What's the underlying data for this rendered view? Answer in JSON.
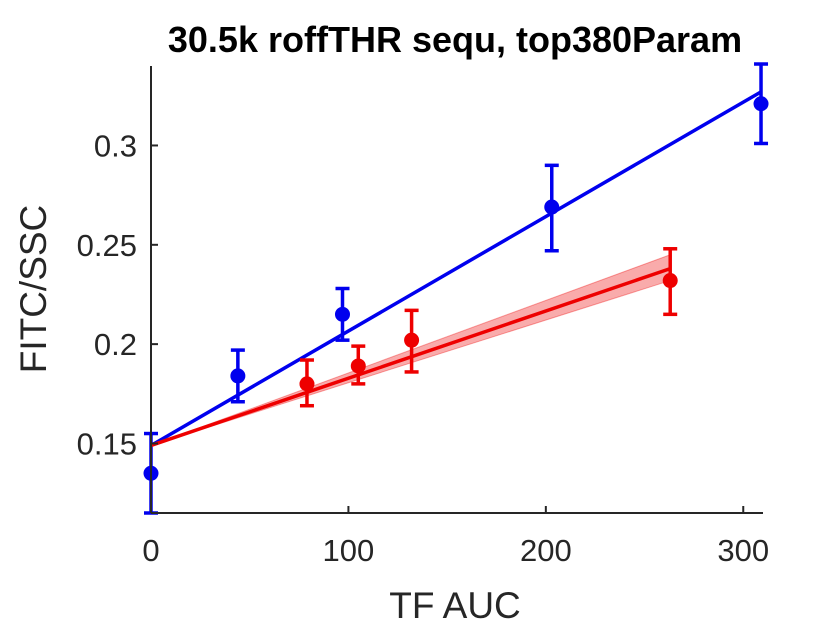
{
  "chart_data": {
    "type": "scatter",
    "title": "30.5k roffTHR sequ, top380Param",
    "xlabel": "TF AUC",
    "ylabel": "FITC/SSC",
    "xlim": [
      0,
      310
    ],
    "ylim": [
      0.115,
      0.34
    ],
    "x_ticks": [
      0,
      100,
      200,
      300
    ],
    "y_ticks": [
      0.15,
      0.2,
      0.25,
      0.3
    ],
    "x_tick_labels": [
      "0",
      "100",
      "200",
      "300"
    ],
    "y_tick_labels": [
      "0.15",
      "0.2",
      "0.25",
      "0.3"
    ],
    "grid": false,
    "series": [
      {
        "color": "#0000ee",
        "points": [
          {
            "x": 0,
            "y": 0.135,
            "err_low": 0.115,
            "err_high": 0.155
          },
          {
            "x": 44,
            "y": 0.184,
            "err_low": 0.171,
            "err_high": 0.197
          },
          {
            "x": 97,
            "y": 0.215,
            "err_low": 0.202,
            "err_high": 0.228
          },
          {
            "x": 203,
            "y": 0.269,
            "err_low": 0.247,
            "err_high": 0.29
          },
          {
            "x": 309,
            "y": 0.321,
            "err_low": 0.301,
            "err_high": 0.341
          }
        ],
        "fit": {
          "x": [
            0,
            309
          ],
          "y": [
            0.149,
            0.327
          ]
        }
      },
      {
        "color": "#ee0000",
        "points": [
          {
            "x": 79,
            "y": 0.18,
            "err_low": 0.169,
            "err_high": 0.192
          },
          {
            "x": 105,
            "y": 0.189,
            "err_low": 0.18,
            "err_high": 0.199
          },
          {
            "x": 132,
            "y": 0.202,
            "err_low": 0.186,
            "err_high": 0.217
          },
          {
            "x": 263,
            "y": 0.232,
            "err_low": 0.215,
            "err_high": 0.248
          }
        ],
        "fit": {
          "x": [
            0,
            263
          ],
          "y": [
            0.149,
            0.238
          ]
        },
        "fit_band": {
          "x": [
            0,
            263
          ],
          "y_low": [
            0.149,
            0.232
          ],
          "y_high": [
            0.149,
            0.245
          ]
        }
      }
    ]
  }
}
